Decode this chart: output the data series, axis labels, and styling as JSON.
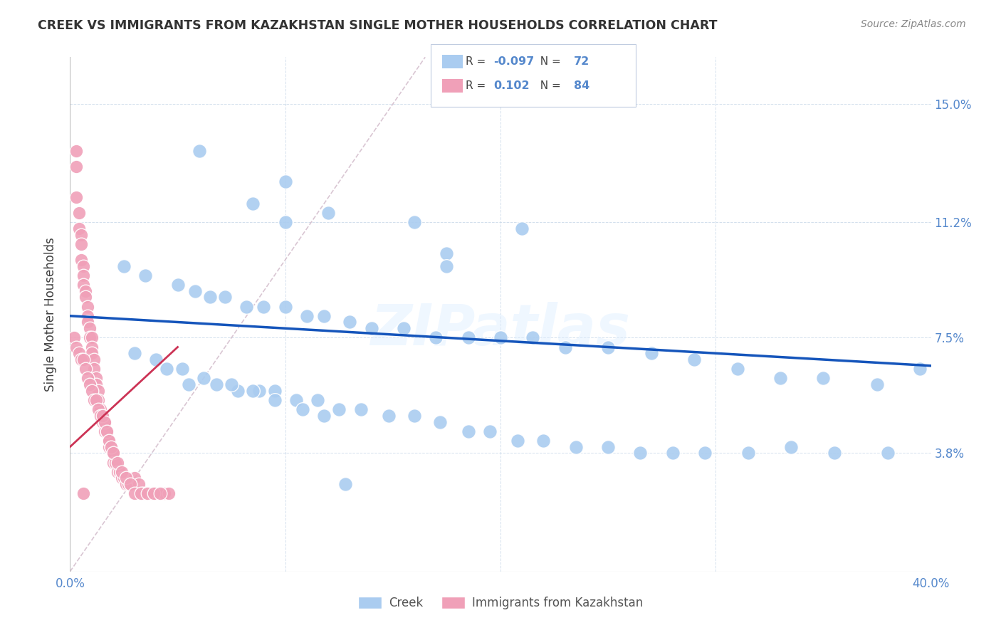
{
  "title": "CREEK VS IMMIGRANTS FROM KAZAKHSTAN SINGLE MOTHER HOUSEHOLDS CORRELATION CHART",
  "source": "Source: ZipAtlas.com",
  "ylabel": "Single Mother Households",
  "yticks": [
    "3.8%",
    "7.5%",
    "11.2%",
    "15.0%"
  ],
  "ytick_vals": [
    0.038,
    0.075,
    0.112,
    0.15
  ],
  "xlim": [
    0.0,
    0.4
  ],
  "ylim": [
    0.0,
    0.165
  ],
  "legend_creek_r": "-0.097",
  "legend_creek_n": "72",
  "legend_kaz_r": "0.102",
  "legend_kaz_n": "84",
  "creek_color": "#aaccf0",
  "kaz_color": "#f0a0b8",
  "trendline_creek_color": "#1555bb",
  "trendline_kaz_color": "#cc3355",
  "diagonal_color": "#d0b8c8",
  "background_color": "#ffffff",
  "watermark": "ZIPatlas",
  "creek_trendline_x0": 0.0,
  "creek_trendline_y0": 0.082,
  "creek_trendline_x1": 0.4,
  "creek_trendline_y1": 0.066,
  "kaz_trendline_x0": 0.0,
  "kaz_trendline_y0": 0.058,
  "kaz_trendline_x1": 0.05,
  "kaz_trendline_y1": 0.068,
  "creek_points_x": [
    0.06,
    0.1,
    0.085,
    0.12,
    0.1,
    0.16,
    0.21,
    0.175,
    0.175,
    0.025,
    0.035,
    0.05,
    0.058,
    0.065,
    0.072,
    0.082,
    0.09,
    0.1,
    0.11,
    0.118,
    0.13,
    0.14,
    0.155,
    0.17,
    0.185,
    0.2,
    0.215,
    0.23,
    0.25,
    0.27,
    0.29,
    0.31,
    0.33,
    0.35,
    0.375,
    0.395,
    0.055,
    0.068,
    0.078,
    0.088,
    0.095,
    0.105,
    0.115,
    0.125,
    0.135,
    0.148,
    0.16,
    0.172,
    0.185,
    0.195,
    0.208,
    0.22,
    0.235,
    0.25,
    0.265,
    0.28,
    0.295,
    0.315,
    0.335,
    0.355,
    0.38,
    0.03,
    0.04,
    0.045,
    0.052,
    0.062,
    0.075,
    0.085,
    0.095,
    0.108,
    0.118,
    0.128
  ],
  "creek_points_y": [
    0.135,
    0.125,
    0.118,
    0.115,
    0.112,
    0.112,
    0.11,
    0.102,
    0.098,
    0.098,
    0.095,
    0.092,
    0.09,
    0.088,
    0.088,
    0.085,
    0.085,
    0.085,
    0.082,
    0.082,
    0.08,
    0.078,
    0.078,
    0.075,
    0.075,
    0.075,
    0.075,
    0.072,
    0.072,
    0.07,
    0.068,
    0.065,
    0.062,
    0.062,
    0.06,
    0.065,
    0.06,
    0.06,
    0.058,
    0.058,
    0.058,
    0.055,
    0.055,
    0.052,
    0.052,
    0.05,
    0.05,
    0.048,
    0.045,
    0.045,
    0.042,
    0.042,
    0.04,
    0.04,
    0.038,
    0.038,
    0.038,
    0.038,
    0.04,
    0.038,
    0.038,
    0.07,
    0.068,
    0.065,
    0.065,
    0.062,
    0.06,
    0.058,
    0.055,
    0.052,
    0.05,
    0.028
  ],
  "kaz_points_x": [
    0.003,
    0.003,
    0.004,
    0.004,
    0.005,
    0.005,
    0.005,
    0.006,
    0.006,
    0.006,
    0.007,
    0.007,
    0.008,
    0.008,
    0.008,
    0.009,
    0.009,
    0.01,
    0.01,
    0.01,
    0.011,
    0.011,
    0.012,
    0.012,
    0.013,
    0.013,
    0.014,
    0.015,
    0.015,
    0.016,
    0.016,
    0.017,
    0.018,
    0.018,
    0.019,
    0.02,
    0.02,
    0.021,
    0.022,
    0.023,
    0.024,
    0.025,
    0.026,
    0.027,
    0.028,
    0.03,
    0.032,
    0.034,
    0.036,
    0.038,
    0.04,
    0.042,
    0.044,
    0.046,
    0.002,
    0.003,
    0.004,
    0.005,
    0.006,
    0.007,
    0.008,
    0.009,
    0.01,
    0.011,
    0.012,
    0.013,
    0.014,
    0.015,
    0.016,
    0.017,
    0.018,
    0.019,
    0.02,
    0.022,
    0.024,
    0.026,
    0.028,
    0.03,
    0.033,
    0.036,
    0.039,
    0.042,
    0.003,
    0.006
  ],
  "kaz_points_y": [
    0.13,
    0.12,
    0.115,
    0.11,
    0.108,
    0.105,
    0.1,
    0.098,
    0.095,
    0.092,
    0.09,
    0.088,
    0.085,
    0.082,
    0.08,
    0.078,
    0.075,
    0.075,
    0.072,
    0.07,
    0.068,
    0.065,
    0.062,
    0.06,
    0.058,
    0.055,
    0.052,
    0.05,
    0.048,
    0.048,
    0.045,
    0.045,
    0.042,
    0.04,
    0.04,
    0.038,
    0.035,
    0.035,
    0.032,
    0.032,
    0.03,
    0.03,
    0.028,
    0.028,
    0.028,
    0.03,
    0.028,
    0.025,
    0.025,
    0.025,
    0.025,
    0.025,
    0.025,
    0.025,
    0.075,
    0.072,
    0.07,
    0.068,
    0.068,
    0.065,
    0.062,
    0.06,
    0.058,
    0.055,
    0.055,
    0.052,
    0.05,
    0.05,
    0.048,
    0.045,
    0.042,
    0.04,
    0.038,
    0.035,
    0.032,
    0.03,
    0.028,
    0.025,
    0.025,
    0.025,
    0.025,
    0.025,
    0.135,
    0.025
  ]
}
